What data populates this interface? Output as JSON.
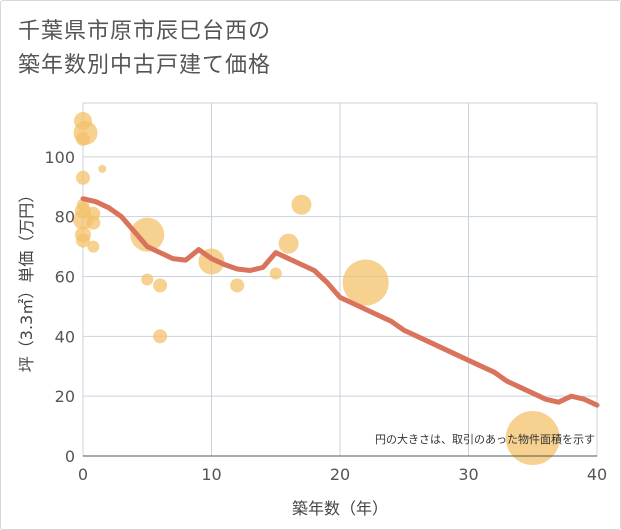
{
  "title_lines": [
    "千葉県市原市辰巳台西の",
    "築年数別中古戸建て価格"
  ],
  "chart_data": {
    "type": "scatter",
    "xlabel": "築年数（年）",
    "ylabel": "坪（3.3㎡）単価（万円）",
    "xlim": [
      0,
      40
    ],
    "ylim": [
      0,
      118
    ],
    "xticks": [
      0,
      10,
      20,
      30,
      40
    ],
    "yticks": [
      0,
      20,
      40,
      60,
      80,
      100
    ],
    "grid": true,
    "note": "円の大きさは、取引のあった物件面積を示す",
    "colors": {
      "bubble": "#f3c16b",
      "line": "#d9735c",
      "grid": "#c9d3dd",
      "axis": "#555555"
    },
    "scatter": [
      {
        "x": 0,
        "y": 112,
        "area": 9
      },
      {
        "x": 0.2,
        "y": 108,
        "area": 12
      },
      {
        "x": 0,
        "y": 106,
        "area": 7
      },
      {
        "x": 1.5,
        "y": 96,
        "area": 4
      },
      {
        "x": 0,
        "y": 93,
        "area": 7
      },
      {
        "x": 0,
        "y": 84,
        "area": 6
      },
      {
        "x": 0,
        "y": 82,
        "area": 8
      },
      {
        "x": 0.8,
        "y": 81,
        "area": 7
      },
      {
        "x": 0,
        "y": 79,
        "area": 10
      },
      {
        "x": 0.8,
        "y": 78,
        "area": 7
      },
      {
        "x": 0,
        "y": 74,
        "area": 8
      },
      {
        "x": 0,
        "y": 72,
        "area": 7
      },
      {
        "x": 0.8,
        "y": 70,
        "area": 6
      },
      {
        "x": 5,
        "y": 74,
        "area": 17
      },
      {
        "x": 5,
        "y": 59,
        "area": 6
      },
      {
        "x": 6,
        "y": 57,
        "area": 7
      },
      {
        "x": 6,
        "y": 40,
        "area": 7
      },
      {
        "x": 10,
        "y": 65,
        "area": 13
      },
      {
        "x": 12,
        "y": 57,
        "area": 7
      },
      {
        "x": 15,
        "y": 61,
        "area": 6
      },
      {
        "x": 16,
        "y": 71,
        "area": 10
      },
      {
        "x": 17,
        "y": 84,
        "area": 10
      },
      {
        "x": 22,
        "y": 58,
        "area": 23
      },
      {
        "x": 35,
        "y": 6,
        "area": 27
      }
    ],
    "trend": {
      "x": [
        0,
        1,
        2,
        3,
        4,
        5,
        6,
        7,
        8,
        9,
        10,
        11,
        12,
        13,
        14,
        15,
        16,
        17,
        18,
        19,
        20,
        21,
        22,
        23,
        24,
        25,
        26,
        27,
        28,
        29,
        30,
        31,
        32,
        33,
        34,
        35,
        36,
        37,
        38,
        39,
        40
      ],
      "y": [
        86,
        85,
        83,
        80,
        75,
        70,
        68,
        66,
        65.5,
        69,
        66,
        64,
        62.5,
        62,
        63,
        68,
        66,
        64,
        62,
        58,
        53,
        51,
        49,
        47,
        45,
        42,
        40,
        38,
        36,
        34,
        32,
        30,
        28,
        25,
        23,
        21,
        19,
        18,
        20,
        19,
        17
      ]
    }
  }
}
